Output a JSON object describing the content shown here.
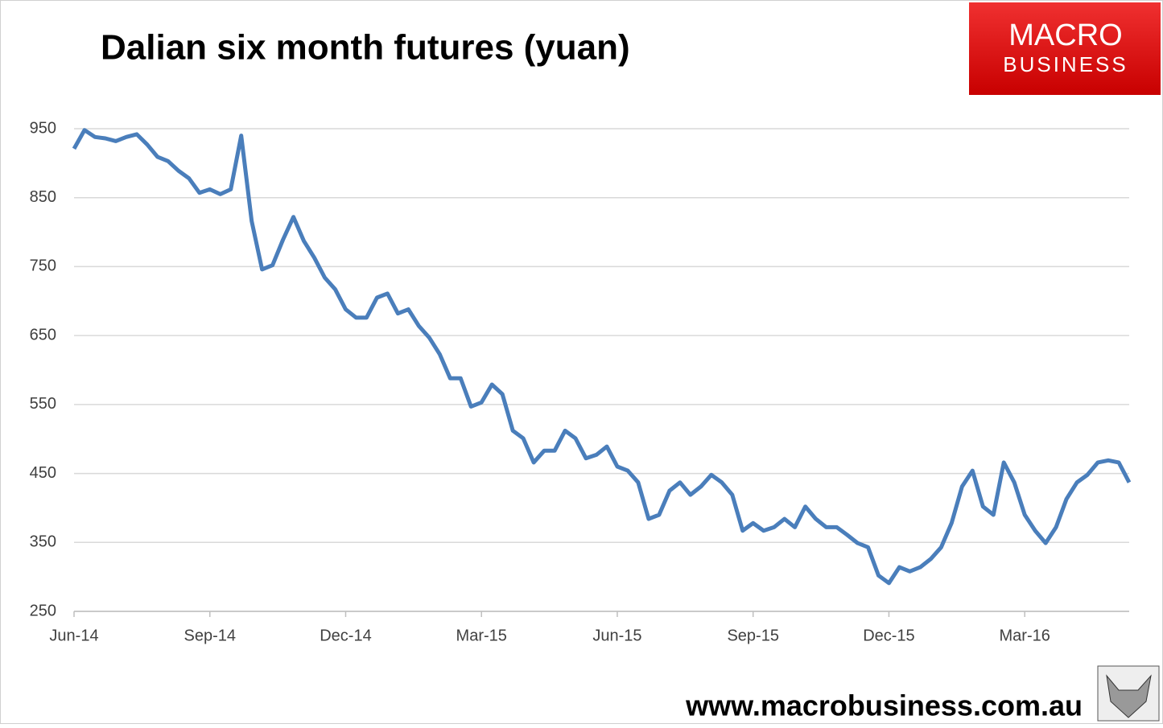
{
  "chart_data": {
    "type": "line",
    "title": "Dalian six month futures (yuan)",
    "brand": [
      "MACRO",
      "BUSINESS"
    ],
    "website": "www.macrobusiness.com.au",
    "categories": [
      "Jun-14",
      null,
      null,
      null,
      null,
      null,
      null,
      null,
      null,
      null,
      null,
      null,
      null,
      "Sep-14",
      null,
      null,
      null,
      null,
      null,
      null,
      null,
      null,
      null,
      null,
      null,
      null,
      "Dec-14",
      null,
      null,
      null,
      null,
      null,
      null,
      null,
      null,
      null,
      null,
      null,
      null,
      "Mar-15",
      null,
      null,
      null,
      null,
      null,
      null,
      null,
      null,
      null,
      null,
      null,
      null,
      "Jun-15",
      null,
      null,
      null,
      null,
      null,
      null,
      null,
      null,
      null,
      null,
      null,
      null,
      "Sep-15",
      null,
      null,
      null,
      null,
      null,
      null,
      null,
      null,
      null,
      null,
      null,
      null,
      "Dec-15",
      null,
      null,
      null,
      null,
      null,
      null,
      null,
      null,
      null,
      null,
      null,
      null,
      "Mar-16",
      null,
      null,
      null,
      null,
      null,
      null,
      null,
      null,
      null,
      null
    ],
    "series": [
      {
        "name": "Dalian six month futures",
        "color": "#4a7ebb",
        "values": [
          921,
          948,
          938,
          936,
          932,
          938,
          942,
          927,
          909,
          903,
          889,
          878,
          857,
          862,
          855,
          862,
          940,
          816,
          746,
          752,
          789,
          822,
          787,
          763,
          734,
          717,
          688,
          676,
          676,
          705,
          711,
          682,
          688,
          664,
          647,
          623,
          588,
          588,
          547,
          553,
          579,
          565,
          512,
          501,
          466,
          483,
          483,
          512,
          501,
          472,
          477,
          489,
          460,
          454,
          437,
          384,
          390,
          425,
          437,
          419,
          431,
          448,
          437,
          419,
          367,
          378,
          367,
          372,
          384,
          372,
          402,
          384,
          372,
          372,
          361,
          349,
          343,
          302,
          291,
          314,
          308,
          314,
          326,
          343,
          378,
          431,
          454,
          402,
          390,
          466,
          437,
          390,
          367,
          349,
          372,
          413,
          437,
          448,
          466,
          469,
          466,
          437
        ]
      }
    ],
    "ylim": [
      250,
      950
    ],
    "yticks": [
      250,
      350,
      450,
      550,
      650,
      750,
      850,
      950
    ],
    "grid": true
  }
}
